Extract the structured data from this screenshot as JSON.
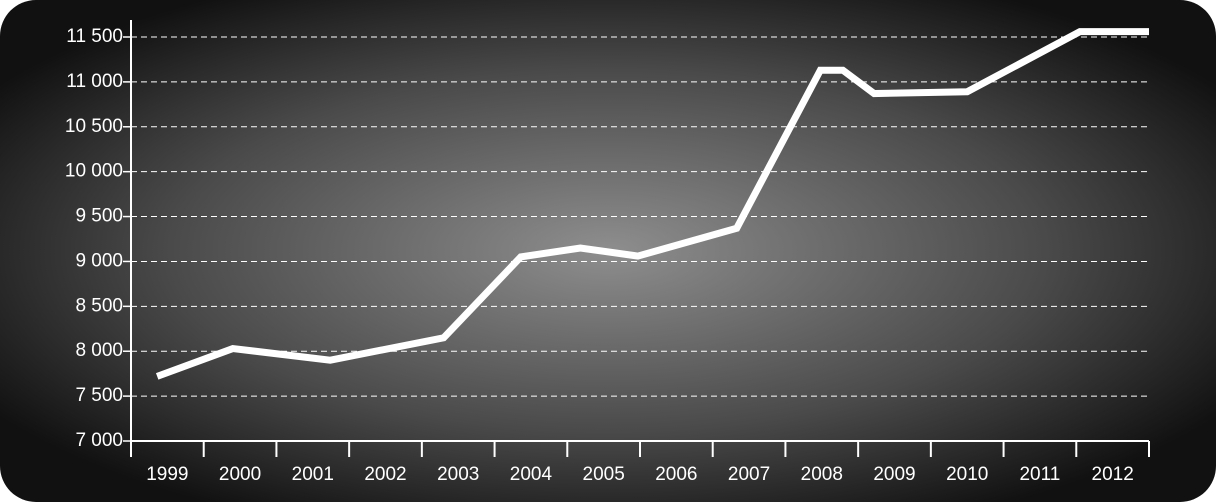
{
  "chart_data": {
    "type": "line",
    "categories": [
      "1999",
      "2000",
      "2001",
      "2002",
      "2003",
      "2004",
      "2005",
      "2006",
      "2007",
      "2008",
      "2009",
      "2010",
      "2011",
      "2012"
    ],
    "series": [
      {
        "color": "#ffffff",
        "x": [
          1999.36,
          2000.4,
          2001.74,
          2003.3,
          2004.36,
          2005.18,
          2005.97,
          2007.33,
          2008.48,
          2008.79,
          2009.22,
          2010.5,
          2012.05,
          2013.0
        ],
        "values": [
          7720,
          8030,
          7900,
          8150,
          9050,
          9150,
          9060,
          9370,
          11130,
          11130,
          10870,
          10890,
          11560,
          11560
        ]
      }
    ],
    "xlim": [
      1999,
      2013
    ],
    "xticks": [
      1999,
      2000,
      2001,
      2002,
      2003,
      2004,
      2005,
      2006,
      2007,
      2008,
      2009,
      2010,
      2011,
      2012,
      2013
    ],
    "ylim": [
      7000,
      11500
    ],
    "yticks": [
      {
        "value": 7000,
        "label": "7 000"
      },
      {
        "value": 7500,
        "label": "7 500"
      },
      {
        "value": 8000,
        "label": "8 000"
      },
      {
        "value": 8500,
        "label": "8 500"
      },
      {
        "value": 9000,
        "label": "9 000"
      },
      {
        "value": 9500,
        "label": "9 500"
      },
      {
        "value": 10000,
        "label": "10 000"
      },
      {
        "value": 10500,
        "label": "10 500"
      },
      {
        "value": 11000,
        "label": "11 000"
      },
      {
        "value": 11500,
        "label": "11 500"
      }
    ],
    "grid": true
  }
}
